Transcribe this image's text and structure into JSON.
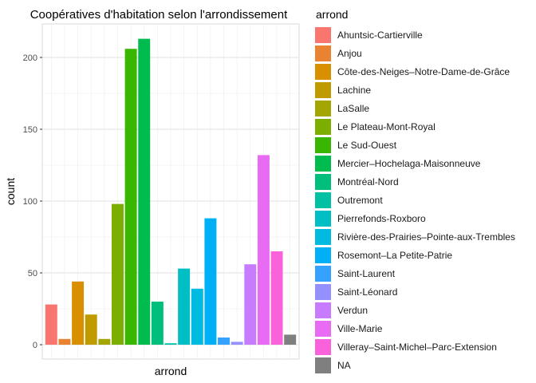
{
  "chart_data": {
    "type": "bar",
    "title": "Coopératives d'habitation selon l'arrondissement",
    "xlabel": "arrond",
    "ylabel": "count",
    "ylim": [
      0,
      220
    ],
    "yticks": [
      0,
      50,
      100,
      150,
      200
    ],
    "grid": true,
    "legend_position": "right",
    "legend_title": "arrond",
    "series": [
      {
        "name": "Ahuntsic-Cartierville",
        "value": 28,
        "color": "#F8766D"
      },
      {
        "name": "Anjou",
        "value": 4,
        "color": "#EA8331"
      },
      {
        "name": "Côte-des-Neiges–Notre-Dame-de-Grâce",
        "value": 44,
        "color": "#D89000"
      },
      {
        "name": "Lachine",
        "value": 21,
        "color": "#C09B00"
      },
      {
        "name": "LaSalle",
        "value": 4,
        "color": "#A3A500"
      },
      {
        "name": "Le Plateau-Mont-Royal",
        "value": 98,
        "color": "#7CAE00"
      },
      {
        "name": "Le Sud-Ouest",
        "value": 206,
        "color": "#39B600"
      },
      {
        "name": "Mercier–Hochelaga-Maisonneuve",
        "value": 213,
        "color": "#00BB4E"
      },
      {
        "name": "Montréal-Nord",
        "value": 30,
        "color": "#00BF7D"
      },
      {
        "name": "Outremont",
        "value": 1,
        "color": "#00C1A3"
      },
      {
        "name": "Pierrefonds-Roxboro",
        "value": 53,
        "color": "#00BFC4"
      },
      {
        "name": "Rivière-des-Prairies–Pointe-aux-Trembles",
        "value": 39,
        "color": "#00BAE0"
      },
      {
        "name": "Rosemont–La Petite-Patrie",
        "value": 88,
        "color": "#00B0F6"
      },
      {
        "name": "Saint-Laurent",
        "value": 5,
        "color": "#35A2FF"
      },
      {
        "name": "Saint-Léonard",
        "value": 2,
        "color": "#9590FF"
      },
      {
        "name": "Verdun",
        "value": 56,
        "color": "#C77CFF"
      },
      {
        "name": "Ville-Marie",
        "value": 132,
        "color": "#E76BF3"
      },
      {
        "name": "Villeray–Saint-Michel–Parc-Extension",
        "value": 65,
        "color": "#FA62DB"
      },
      {
        "name": "NA",
        "value": 7,
        "color": "#7F7F7F"
      }
    ]
  }
}
